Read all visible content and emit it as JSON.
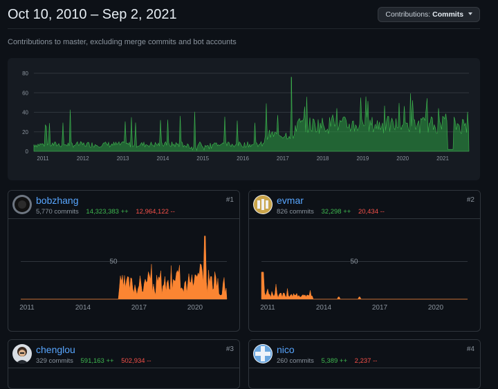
{
  "header": {
    "date_range": "Oct 10, 2010 – Sep 2, 2021",
    "contributions_label": "Contributions:",
    "contributions_value": "Commits"
  },
  "subtitle": "Contributions to master, excluding merge commits and bot accounts",
  "colors": {
    "overview": "#2ea043",
    "contributor": "#fb8532",
    "link": "#58a6ff",
    "add": "#3fb950",
    "del": "#f85149"
  },
  "overview": {
    "y_ticks": [
      "80",
      "60",
      "40",
      "20",
      "0"
    ],
    "x_ticks": [
      "2011",
      "2012",
      "2013",
      "2014",
      "2015",
      "2016",
      "2017",
      "2018",
      "2019",
      "2020",
      "2021"
    ]
  },
  "contributors": [
    {
      "login": "bobzhang",
      "commits": "5,770 commits",
      "additions": "14,323,383 ++",
      "deletions": "12,964,122 --",
      "rank": "#1",
      "avatar": "dark-circle-avatar",
      "y_tick": "50",
      "x_ticks": [
        "2011",
        "2014",
        "2017",
        "2020"
      ]
    },
    {
      "login": "evmar",
      "commits": "826 commits",
      "additions": "32,298 ++",
      "deletions": "20,434 --",
      "rank": "#2",
      "avatar": "identicon-yellow",
      "y_tick": "50",
      "x_ticks": [
        "2011",
        "2014",
        "2017",
        "2020"
      ]
    },
    {
      "login": "chenglou",
      "commits": "329 commits",
      "additions": "591,163 ++",
      "deletions": "502,934 --",
      "rank": "#3",
      "avatar": "photo-avatar"
    },
    {
      "login": "nico",
      "commits": "260 commits",
      "additions": "5,389 ++",
      "deletions": "2,237 --",
      "rank": "#4",
      "avatar": "identicon-blue"
    }
  ]
}
